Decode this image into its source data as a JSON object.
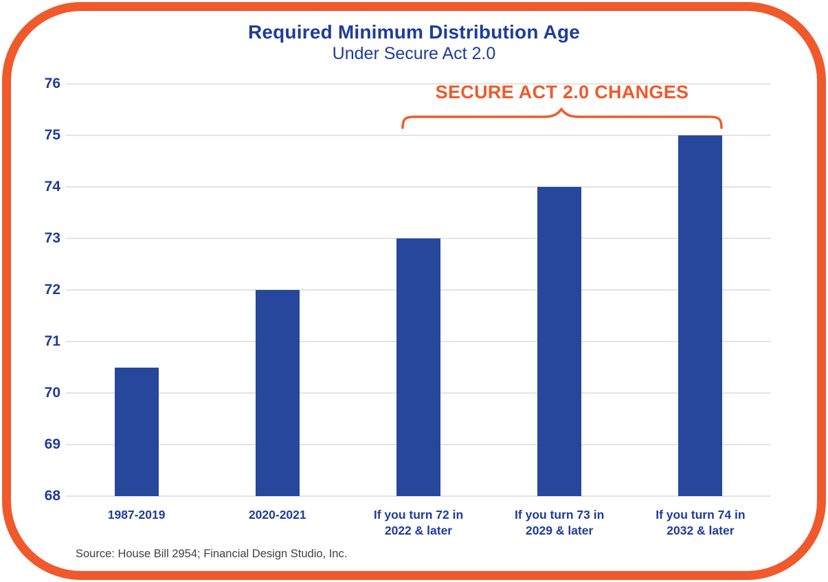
{
  "colors": {
    "accent_orange": "#F0592B",
    "bar_blue": "#27479D",
    "text_blue": "#1E3C99",
    "grid_gray": "#E4E4E4",
    "source_gray": "#3F3F3F",
    "background": "#FFFFFF"
  },
  "chart_data": {
    "type": "bar",
    "title": "Required Minimum Distribution Age",
    "subtitle": "Under Secure Act 2.0",
    "categories": [
      "1987-2019",
      "2020-2021",
      "If you turn 72 in\n2022 & later",
      "If you turn 73 in\n2029 & later",
      "If you turn 74 in\n2032 & later"
    ],
    "values": [
      70.5,
      72,
      73,
      74,
      75
    ],
    "xlabel": "",
    "ylabel": "",
    "ylim": [
      68,
      76
    ],
    "ytick_step": 1,
    "grid": true,
    "legend": "none",
    "annotation": {
      "label": "SECURE ACT 2.0 CHANGES",
      "covers_categories": [
        2,
        3,
        4
      ]
    },
    "source": "Source: House Bill 2954; Financial Design Studio, Inc."
  }
}
